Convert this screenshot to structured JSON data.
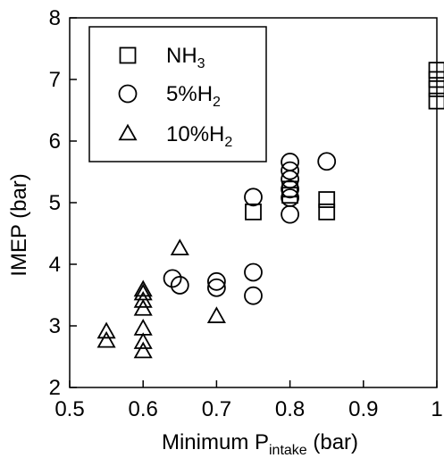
{
  "chart_data": {
    "type": "scatter",
    "xlabel_main": "Minimum P",
    "xlabel_sub": "intake",
    "xlabel_tail": " (bar)",
    "ylabel": "IMEP (bar)",
    "xlim": [
      0.5,
      1.0
    ],
    "ylim": [
      2,
      8
    ],
    "xticks": [
      0.5,
      0.6,
      0.7,
      0.8,
      0.9,
      1.0
    ],
    "xtick_labels": [
      "0.5",
      "0.6",
      "0.7",
      "0.8",
      "0.9",
      "1"
    ],
    "yticks": [
      2,
      3,
      4,
      5,
      6,
      7,
      8
    ],
    "ytick_labels": [
      "2",
      "3",
      "4",
      "5",
      "6",
      "7",
      "8"
    ],
    "grid": false,
    "legend_position": "top-left",
    "series": [
      {
        "name": "NH3",
        "label_main": "NH",
        "label_sub": "3",
        "marker": "square",
        "points": [
          [
            0.75,
            4.85
          ],
          [
            0.8,
            5.12
          ],
          [
            0.8,
            5.22
          ],
          [
            0.85,
            4.85
          ],
          [
            0.85,
            5.05
          ],
          [
            1.0,
            6.65
          ],
          [
            1.0,
            6.85
          ],
          [
            1.0,
            7.0
          ],
          [
            1.0,
            7.15
          ]
        ]
      },
      {
        "name": "5%H2",
        "label_main": "5%H",
        "label_sub": "2",
        "marker": "circle",
        "points": [
          [
            0.64,
            3.77
          ],
          [
            0.65,
            3.66
          ],
          [
            0.7,
            3.62
          ],
          [
            0.7,
            3.72
          ],
          [
            0.75,
            3.49
          ],
          [
            0.75,
            3.87
          ],
          [
            0.75,
            5.09
          ],
          [
            0.8,
            4.81
          ],
          [
            0.8,
            5.08
          ],
          [
            0.8,
            5.22
          ],
          [
            0.8,
            5.38
          ],
          [
            0.8,
            5.52
          ],
          [
            0.8,
            5.66
          ],
          [
            0.85,
            5.67
          ]
        ]
      },
      {
        "name": "10%H2",
        "label_main": "10%H",
        "label_sub": "2",
        "marker": "triangle",
        "points": [
          [
            0.55,
            2.9
          ],
          [
            0.55,
            2.75
          ],
          [
            0.6,
            3.58
          ],
          [
            0.6,
            3.52
          ],
          [
            0.6,
            3.4
          ],
          [
            0.6,
            3.27
          ],
          [
            0.6,
            2.95
          ],
          [
            0.6,
            2.73
          ],
          [
            0.6,
            2.58
          ],
          [
            0.65,
            4.25
          ],
          [
            0.7,
            3.15
          ]
        ]
      }
    ]
  }
}
